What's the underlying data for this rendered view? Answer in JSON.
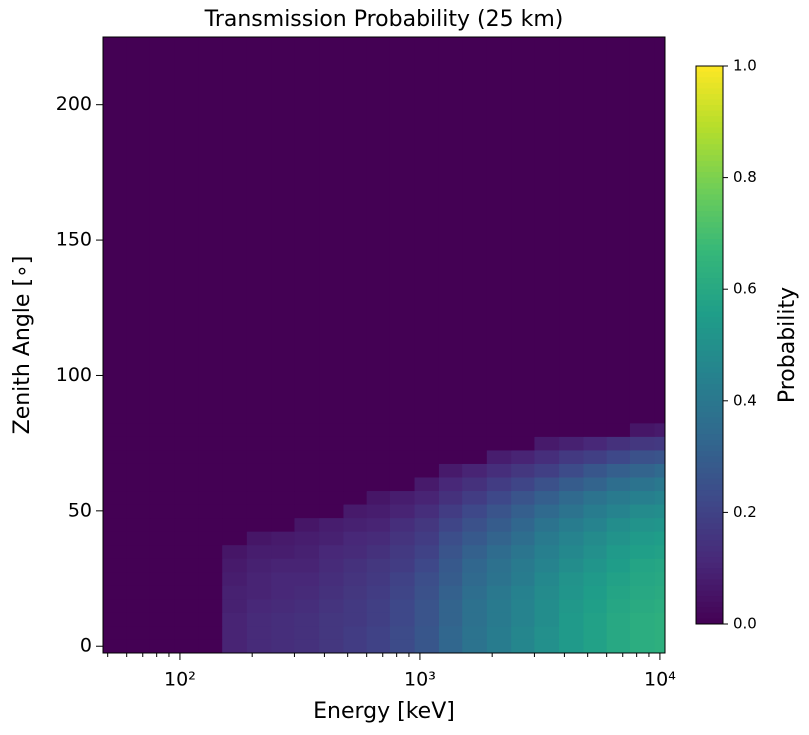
{
  "chart_data": {
    "type": "heatmap",
    "title": "Transmission Probability (25 km)",
    "x_label": "Energy [keV]",
    "y_label": "Zenith Angle [∘]",
    "colorbar_label": "Probability",
    "colormap": "viridis",
    "xscale": "log",
    "xlim": [
      47.8,
      10500
    ],
    "ylim": [
      -2.5,
      225
    ],
    "xticks": [
      {
        "value": 100,
        "label": "10²"
      },
      {
        "value": 1000,
        "label": "10³"
      },
      {
        "value": 10000,
        "label": "10⁴"
      }
    ],
    "xminorticks": [
      50,
      60,
      70,
      80,
      90,
      200,
      300,
      400,
      500,
      600,
      700,
      800,
      900,
      2000,
      3000,
      4000,
      5000,
      6000,
      7000,
      8000,
      9000
    ],
    "yticks": [
      0,
      50,
      100,
      150,
      200
    ],
    "clim": [
      0,
      1
    ],
    "cticks": [
      {
        "value": 0,
        "label": "0.0"
      },
      {
        "value": 0.2,
        "label": "0.2"
      },
      {
        "value": 0.4,
        "label": "0.4"
      },
      {
        "value": 0.6,
        "label": "0.6"
      },
      {
        "value": 0.8,
        "label": "0.8"
      },
      {
        "value": 1,
        "label": "1.0"
      }
    ],
    "xbins": [
      48,
      60,
      75,
      95,
      120,
      150,
      190,
      240,
      300,
      380,
      480,
      600,
      750,
      950,
      1200,
      1500,
      1900,
      2400,
      3000,
      3800,
      4800,
      6000,
      7500,
      9500,
      10500
    ],
    "ybins": [
      -2.5,
      2.5,
      7.5,
      12.5,
      17.5,
      22.5,
      27.5,
      32.5,
      37.5,
      42.5,
      47.5,
      52.5,
      57.5,
      62.5,
      67.5,
      72.5,
      77.5,
      82.5,
      225
    ],
    "values": [
      [
        0,
        0,
        0,
        0,
        0,
        0.1,
        0.12,
        0.13,
        0.14,
        0.16,
        0.18,
        0.2,
        0.23,
        0.27,
        0.33,
        0.38,
        0.42,
        0.46,
        0.5,
        0.54,
        0.57,
        0.6,
        0.62,
        0.63
      ],
      [
        0,
        0,
        0,
        0,
        0,
        0.1,
        0.12,
        0.13,
        0.14,
        0.16,
        0.18,
        0.2,
        0.23,
        0.27,
        0.33,
        0.38,
        0.42,
        0.46,
        0.5,
        0.54,
        0.57,
        0.6,
        0.62,
        0.63
      ],
      [
        0,
        0,
        0,
        0,
        0,
        0.1,
        0.12,
        0.13,
        0.14,
        0.16,
        0.17,
        0.19,
        0.22,
        0.26,
        0.32,
        0.37,
        0.41,
        0.45,
        0.49,
        0.54,
        0.57,
        0.6,
        0.62,
        0.63
      ],
      [
        0,
        0,
        0,
        0,
        0,
        0.09,
        0.11,
        0.12,
        0.13,
        0.15,
        0.17,
        0.19,
        0.22,
        0.26,
        0.32,
        0.37,
        0.41,
        0.45,
        0.49,
        0.53,
        0.56,
        0.59,
        0.61,
        0.62
      ],
      [
        0,
        0,
        0,
        0,
        0,
        0.09,
        0.1,
        0.11,
        0.12,
        0.14,
        0.16,
        0.18,
        0.21,
        0.25,
        0.31,
        0.36,
        0.4,
        0.44,
        0.48,
        0.52,
        0.55,
        0.58,
        0.6,
        0.61
      ],
      [
        0,
        0,
        0,
        0,
        0,
        0.08,
        0.1,
        0.11,
        0.11,
        0.13,
        0.15,
        0.17,
        0.2,
        0.24,
        0.29,
        0.34,
        0.38,
        0.42,
        0.47,
        0.51,
        0.54,
        0.57,
        0.59,
        0.6
      ],
      [
        0,
        0,
        0,
        0,
        0,
        0.07,
        0.09,
        0.1,
        0.1,
        0.12,
        0.14,
        0.16,
        0.18,
        0.22,
        0.28,
        0.33,
        0.37,
        0.41,
        0.45,
        0.49,
        0.52,
        0.55,
        0.58,
        0.59
      ],
      [
        0,
        0,
        0,
        0,
        0,
        0.06,
        0.08,
        0.08,
        0.09,
        0.11,
        0.12,
        0.14,
        0.17,
        0.2,
        0.26,
        0.31,
        0.35,
        0.39,
        0.43,
        0.47,
        0.5,
        0.54,
        0.56,
        0.57
      ],
      [
        0,
        0,
        0,
        0,
        0,
        0,
        0.06,
        0.07,
        0.08,
        0.09,
        0.11,
        0.12,
        0.15,
        0.18,
        0.24,
        0.28,
        0.32,
        0.36,
        0.41,
        0.45,
        0.48,
        0.51,
        0.54,
        0.55
      ],
      [
        0,
        0,
        0,
        0,
        0,
        0,
        0,
        0,
        0.06,
        0.08,
        0.09,
        0.1,
        0.13,
        0.16,
        0.21,
        0.25,
        0.29,
        0.33,
        0.38,
        0.42,
        0.45,
        0.49,
        0.51,
        0.52
      ],
      [
        0,
        0,
        0,
        0,
        0,
        0,
        0,
        0,
        0,
        0,
        0.07,
        0.08,
        0.1,
        0.13,
        0.18,
        0.22,
        0.26,
        0.3,
        0.34,
        0.38,
        0.42,
        0.45,
        0.48,
        0.49
      ],
      [
        0,
        0,
        0,
        0,
        0,
        0,
        0,
        0,
        0,
        0,
        0,
        0.06,
        0.08,
        0.1,
        0.14,
        0.18,
        0.22,
        0.26,
        0.3,
        0.34,
        0.38,
        0.41,
        0.43,
        0.45
      ],
      [
        0,
        0,
        0,
        0,
        0,
        0,
        0,
        0,
        0,
        0,
        0,
        0,
        0,
        0.07,
        0.11,
        0.14,
        0.18,
        0.21,
        0.25,
        0.29,
        0.32,
        0.36,
        0.38,
        0.4
      ],
      [
        0,
        0,
        0,
        0,
        0,
        0,
        0,
        0,
        0,
        0,
        0,
        0,
        0,
        0,
        0.07,
        0.1,
        0.13,
        0.16,
        0.19,
        0.23,
        0.27,
        0.3,
        0.32,
        0.34
      ],
      [
        0,
        0,
        0,
        0,
        0,
        0,
        0,
        0,
        0,
        0,
        0,
        0,
        0,
        0,
        0,
        0,
        0.08,
        0.1,
        0.13,
        0.17,
        0.19,
        0.22,
        0.25,
        0.26
      ],
      [
        0,
        0,
        0,
        0,
        0,
        0,
        0,
        0,
        0,
        0,
        0,
        0,
        0,
        0,
        0,
        0,
        0,
        0,
        0.07,
        0.09,
        0.11,
        0.14,
        0.16,
        0.17
      ],
      [
        0,
        0,
        0,
        0,
        0,
        0,
        0,
        0,
        0,
        0,
        0,
        0,
        0,
        0,
        0,
        0,
        0,
        0,
        0,
        0,
        0,
        0,
        0.06,
        0.07
      ],
      [
        0,
        0,
        0,
        0,
        0,
        0,
        0,
        0,
        0,
        0,
        0,
        0,
        0,
        0,
        0,
        0,
        0,
        0,
        0,
        0,
        0,
        0,
        0,
        0
      ]
    ]
  }
}
